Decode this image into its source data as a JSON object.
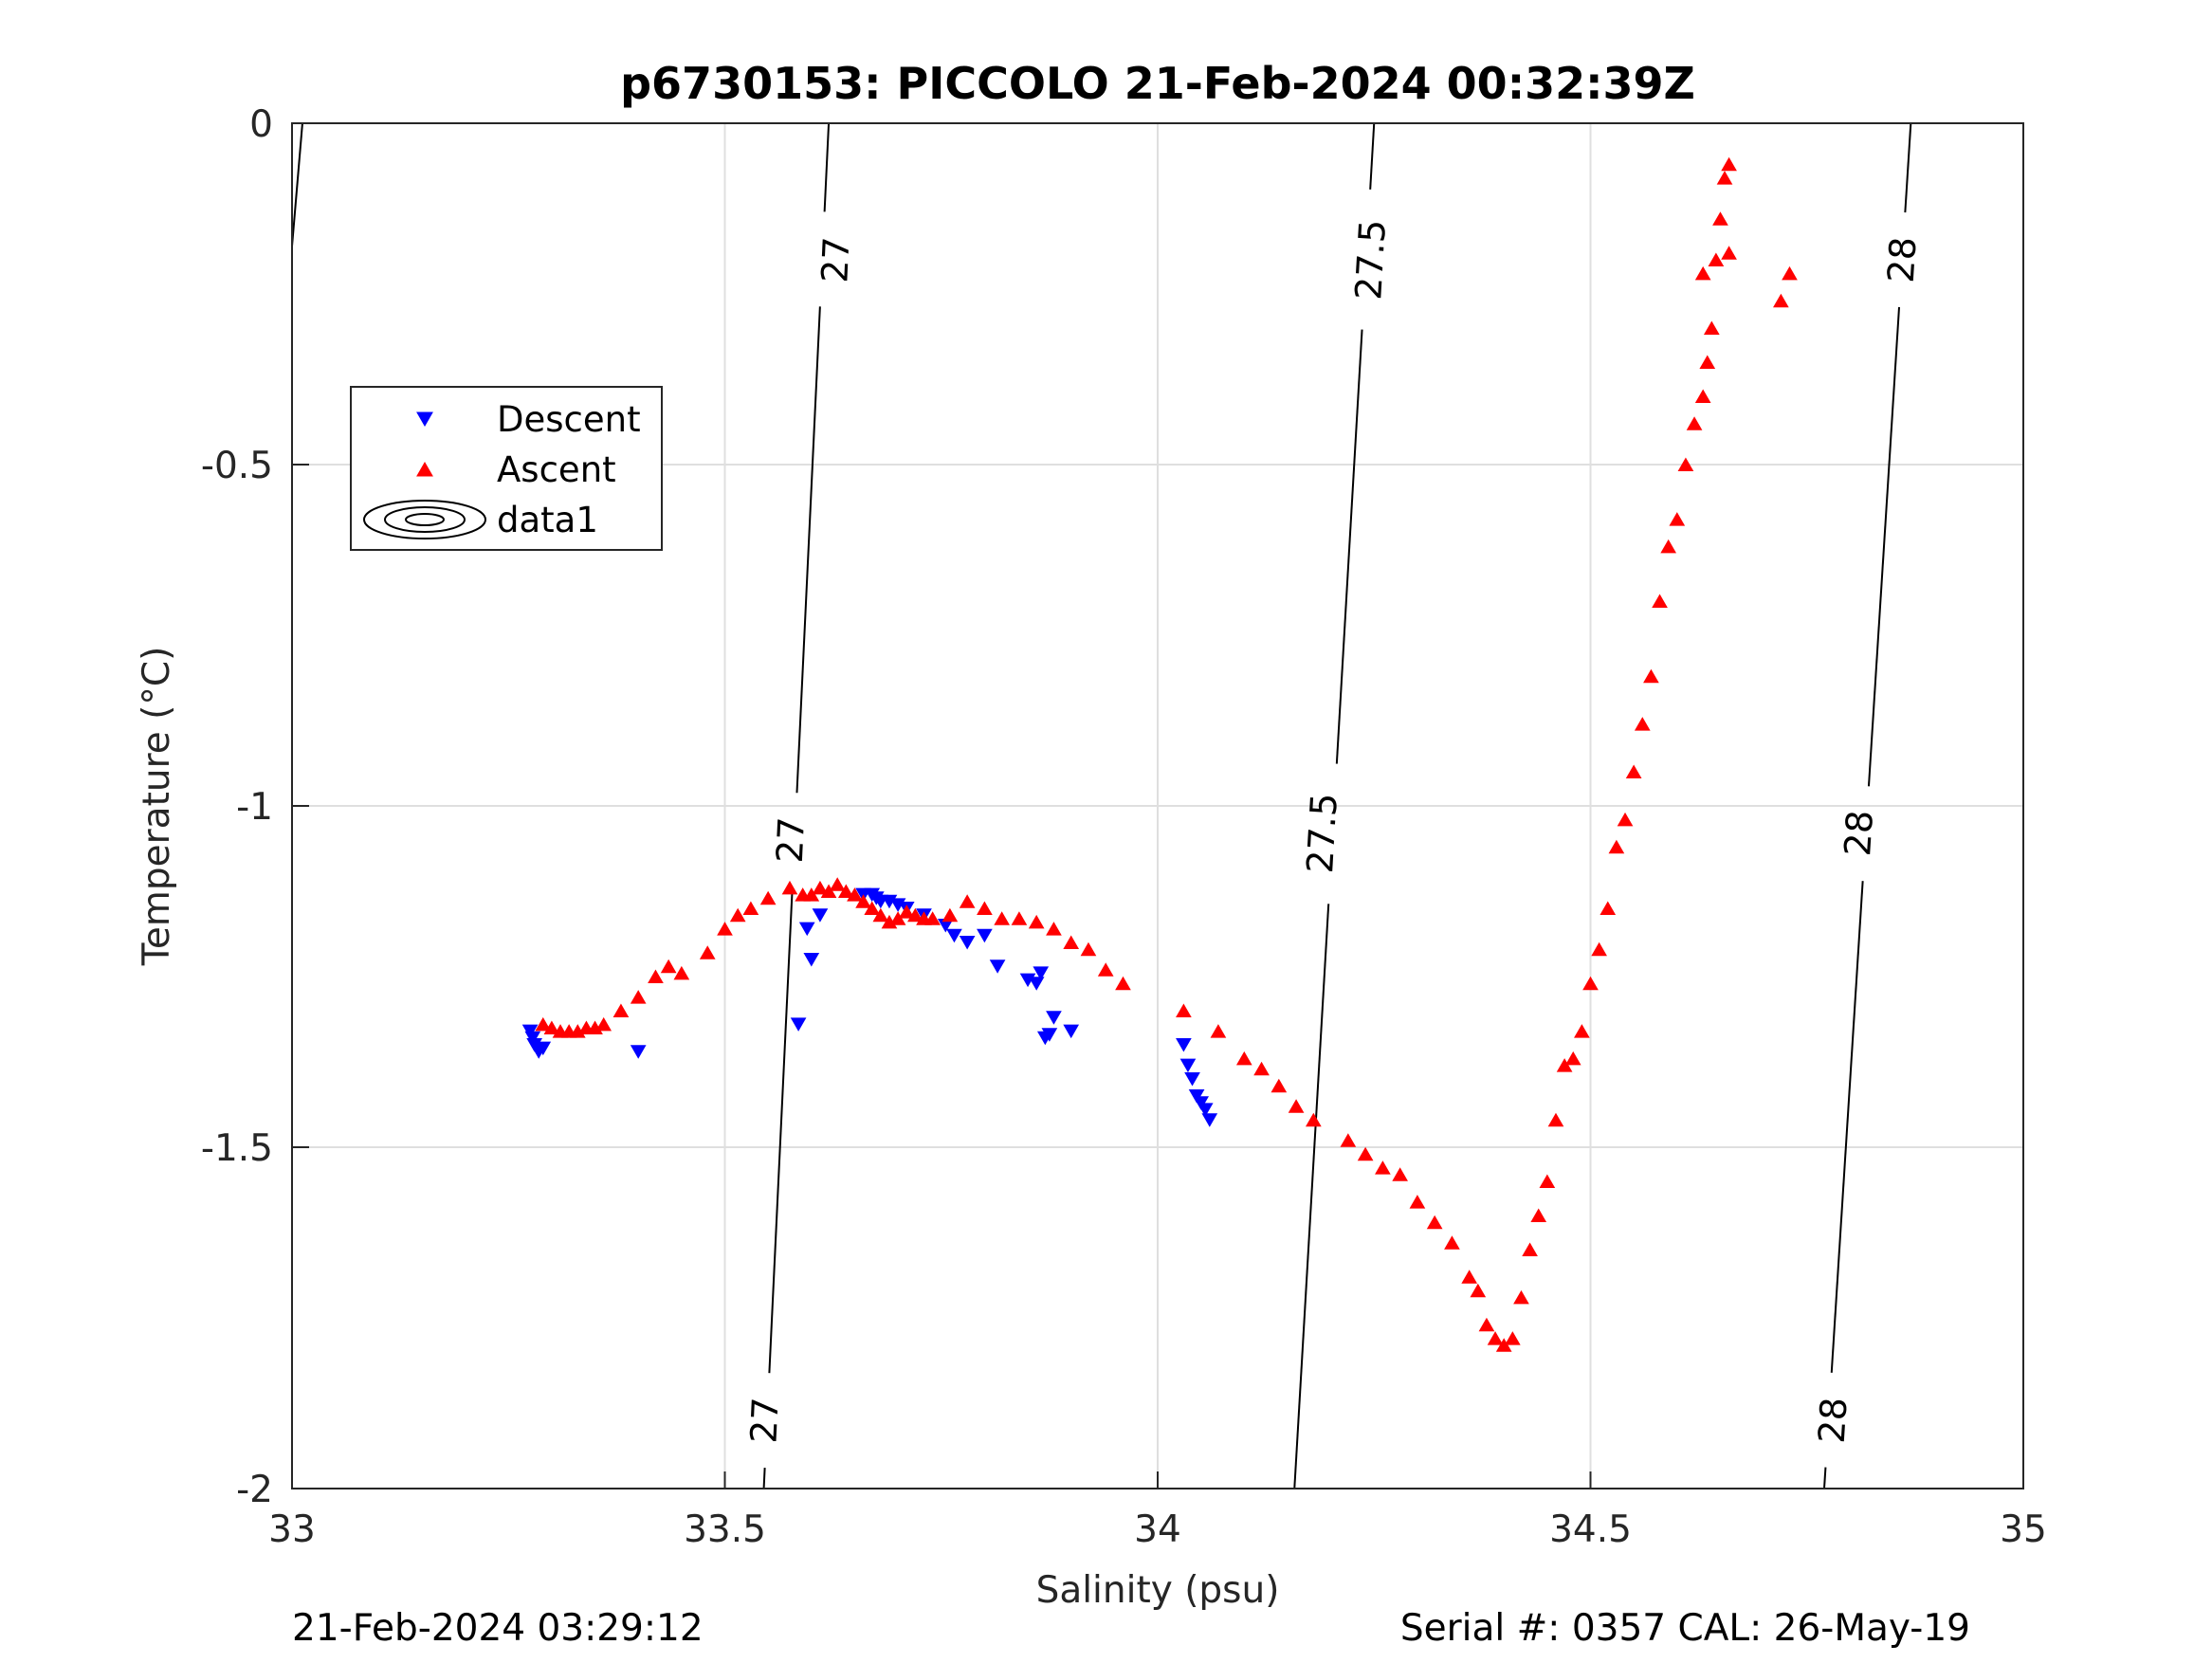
{
  "chart_data": {
    "type": "scatter",
    "title": "p6730153: PICCOLO 21-Feb-2024 00:32:39Z",
    "xlabel": "Salinity (psu)",
    "ylabel": "Temperature (°C)",
    "xlim": [
      33,
      35
    ],
    "ylim": [
      -2,
      0
    ],
    "xticks": [
      33,
      33.5,
      34,
      34.5,
      35
    ],
    "xtick_labels": [
      "33",
      "33.5",
      "34",
      "34.5",
      "35"
    ],
    "yticks": [
      0,
      -0.5,
      -1,
      -1.5,
      -2
    ],
    "ytick_labels": [
      "0",
      "-0.5",
      "-1",
      "-1.5",
      "-2"
    ],
    "grid": true,
    "legend": {
      "placement": "upper-left",
      "entries": [
        {
          "label": "Descent",
          "color": "#0000ff",
          "marker": "triangle-down"
        },
        {
          "label": "Ascent",
          "color": "#ff0000",
          "marker": "triangle-up"
        },
        {
          "label": "data1",
          "color": "#000000",
          "marker": "contour"
        }
      ]
    },
    "contours": [
      {
        "label": "27",
        "points": [
          [
            33.545,
            -2.0
          ],
          [
            33.62,
            0.0
          ]
        ],
        "label_positions": [
          [
            33.546,
            -1.9
          ],
          [
            33.576,
            -1.05
          ],
          [
            33.628,
            -0.2
          ]
        ]
      },
      {
        "label": "27.5",
        "points": [
          [
            34.158,
            -2.0
          ],
          [
            34.25,
            0.0
          ]
        ],
        "label_positions": [
          [
            34.19,
            -1.04
          ],
          [
            34.246,
            -0.2
          ]
        ]
      },
      {
        "label": "28",
        "points": [
          [
            34.77,
            -2.0
          ],
          [
            34.87,
            0.0
          ]
        ],
        "label_positions": [
          [
            34.78,
            -1.9
          ],
          [
            34.81,
            -1.04
          ],
          [
            34.86,
            -0.2
          ]
        ]
      },
      {
        "label": "",
        "points": [
          [
            33.0,
            -0.18
          ],
          [
            33.012,
            0.0
          ]
        ],
        "label_positions": []
      }
    ],
    "series": [
      {
        "name": "Descent",
        "color": "#0000ff",
        "marker": "triangle-down",
        "points": [
          [
            33.275,
            -1.33
          ],
          [
            33.278,
            -1.34
          ],
          [
            33.28,
            -1.35
          ],
          [
            33.285,
            -1.36
          ],
          [
            33.29,
            -1.355
          ],
          [
            33.4,
            -1.36
          ],
          [
            33.585,
            -1.32
          ],
          [
            33.595,
            -1.18
          ],
          [
            33.6,
            -1.225
          ],
          [
            33.61,
            -1.16
          ],
          [
            33.66,
            -1.13
          ],
          [
            33.67,
            -1.13
          ],
          [
            33.675,
            -1.135
          ],
          [
            33.68,
            -1.14
          ],
          [
            33.69,
            -1.14
          ],
          [
            33.7,
            -1.145
          ],
          [
            33.71,
            -1.15
          ],
          [
            33.73,
            -1.16
          ],
          [
            33.755,
            -1.175
          ],
          [
            33.765,
            -1.19
          ],
          [
            33.78,
            -1.2
          ],
          [
            33.8,
            -1.19
          ],
          [
            33.815,
            -1.235
          ],
          [
            33.85,
            -1.255
          ],
          [
            33.86,
            -1.26
          ],
          [
            33.865,
            -1.245
          ],
          [
            33.87,
            -1.34
          ],
          [
            33.875,
            -1.335
          ],
          [
            33.88,
            -1.31
          ],
          [
            33.9,
            -1.33
          ],
          [
            34.03,
            -1.35
          ],
          [
            34.035,
            -1.38
          ],
          [
            34.04,
            -1.4
          ],
          [
            34.045,
            -1.425
          ],
          [
            34.05,
            -1.435
          ],
          [
            34.055,
            -1.445
          ],
          [
            34.06,
            -1.46
          ]
        ]
      },
      {
        "name": "Ascent",
        "color": "#ff0000",
        "marker": "triangle-up",
        "points": [
          [
            33.29,
            -1.32
          ],
          [
            33.3,
            -1.325
          ],
          [
            33.31,
            -1.33
          ],
          [
            33.32,
            -1.33
          ],
          [
            33.33,
            -1.33
          ],
          [
            33.34,
            -1.325
          ],
          [
            33.35,
            -1.325
          ],
          [
            33.36,
            -1.32
          ],
          [
            33.38,
            -1.3
          ],
          [
            33.4,
            -1.28
          ],
          [
            33.42,
            -1.25
          ],
          [
            33.435,
            -1.235
          ],
          [
            33.45,
            -1.245
          ],
          [
            33.48,
            -1.215
          ],
          [
            33.5,
            -1.18
          ],
          [
            33.515,
            -1.16
          ],
          [
            33.53,
            -1.15
          ],
          [
            33.55,
            -1.135
          ],
          [
            33.575,
            -1.12
          ],
          [
            33.59,
            -1.13
          ],
          [
            33.6,
            -1.13
          ],
          [
            33.61,
            -1.12
          ],
          [
            33.62,
            -1.125
          ],
          [
            33.63,
            -1.115
          ],
          [
            33.64,
            -1.125
          ],
          [
            33.65,
            -1.13
          ],
          [
            33.66,
            -1.14
          ],
          [
            33.67,
            -1.15
          ],
          [
            33.68,
            -1.16
          ],
          [
            33.69,
            -1.17
          ],
          [
            33.7,
            -1.165
          ],
          [
            33.71,
            -1.155
          ],
          [
            33.72,
            -1.16
          ],
          [
            33.73,
            -1.165
          ],
          [
            33.74,
            -1.165
          ],
          [
            33.76,
            -1.16
          ],
          [
            33.78,
            -1.14
          ],
          [
            33.8,
            -1.15
          ],
          [
            33.82,
            -1.165
          ],
          [
            33.84,
            -1.165
          ],
          [
            33.86,
            -1.17
          ],
          [
            33.88,
            -1.18
          ],
          [
            33.9,
            -1.2
          ],
          [
            33.92,
            -1.21
          ],
          [
            33.94,
            -1.24
          ],
          [
            33.96,
            -1.26
          ],
          [
            34.03,
            -1.3
          ],
          [
            34.07,
            -1.33
          ],
          [
            34.1,
            -1.37
          ],
          [
            34.12,
            -1.385
          ],
          [
            34.14,
            -1.41
          ],
          [
            34.16,
            -1.44
          ],
          [
            34.18,
            -1.46
          ],
          [
            34.22,
            -1.49
          ],
          [
            34.24,
            -1.51
          ],
          [
            34.26,
            -1.53
          ],
          [
            34.28,
            -1.54
          ],
          [
            34.3,
            -1.58
          ],
          [
            34.32,
            -1.61
          ],
          [
            34.34,
            -1.64
          ],
          [
            34.36,
            -1.69
          ],
          [
            34.37,
            -1.71
          ],
          [
            34.38,
            -1.76
          ],
          [
            34.39,
            -1.78
          ],
          [
            34.4,
            -1.79
          ],
          [
            34.41,
            -1.78
          ],
          [
            34.42,
            -1.72
          ],
          [
            34.43,
            -1.65
          ],
          [
            34.44,
            -1.6
          ],
          [
            34.45,
            -1.55
          ],
          [
            34.46,
            -1.46
          ],
          [
            34.47,
            -1.38
          ],
          [
            34.48,
            -1.37
          ],
          [
            34.49,
            -1.33
          ],
          [
            34.5,
            -1.26
          ],
          [
            34.51,
            -1.21
          ],
          [
            34.52,
            -1.15
          ],
          [
            34.53,
            -1.06
          ],
          [
            34.54,
            -1.02
          ],
          [
            34.55,
            -0.95
          ],
          [
            34.56,
            -0.88
          ],
          [
            34.57,
            -0.81
          ],
          [
            34.58,
            -0.7
          ],
          [
            34.59,
            -0.62
          ],
          [
            34.6,
            -0.58
          ],
          [
            34.61,
            -0.5
          ],
          [
            34.62,
            -0.44
          ],
          [
            34.63,
            -0.4
          ],
          [
            34.635,
            -0.35
          ],
          [
            34.64,
            -0.3
          ],
          [
            34.645,
            -0.2
          ],
          [
            34.65,
            -0.14
          ],
          [
            34.655,
            -0.08
          ],
          [
            34.66,
            -0.06
          ],
          [
            34.66,
            -0.19
          ],
          [
            34.63,
            -0.22
          ],
          [
            34.72,
            -0.26
          ],
          [
            34.73,
            -0.22
          ]
        ]
      }
    ],
    "footer_left": "21-Feb-2024 03:29:12",
    "footer_right": "Serial #: 0357  CAL: 26-May-19"
  }
}
